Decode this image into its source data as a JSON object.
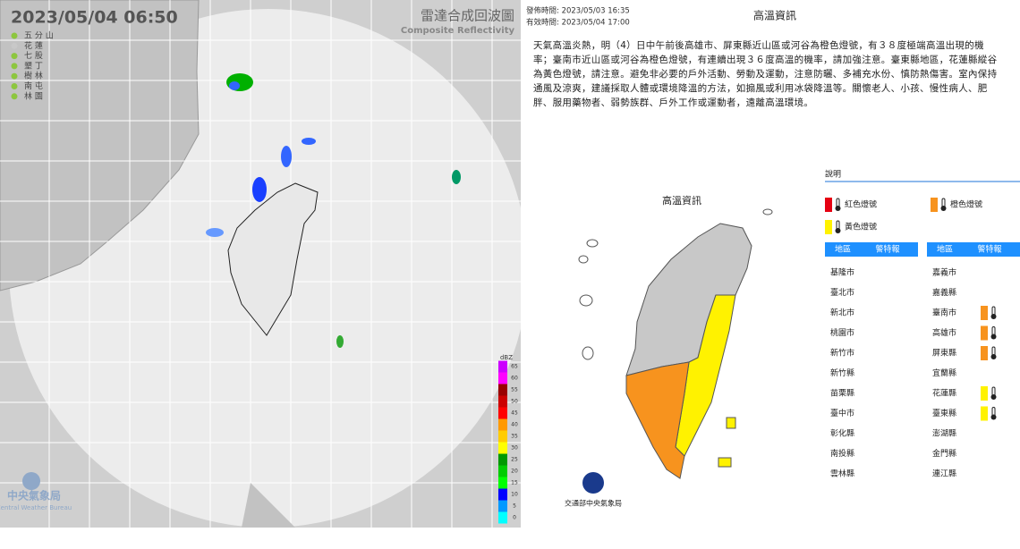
{
  "radar": {
    "timestamp": "2023/05/04  06:50",
    "title": "雷達合成回波圖",
    "subtitle": "Composite Reflectivity",
    "stations": [
      {
        "name": "五 分 山",
        "color": "#8dc63f"
      },
      {
        "name": "花 蓮",
        "color": "#c8c8c8"
      },
      {
        "name": "七 股",
        "color": "#8dc63f"
      },
      {
        "name": "墾 丁",
        "color": "#8dc63f"
      },
      {
        "name": "樹 林",
        "color": "#8dc63f"
      },
      {
        "name": "南 屯",
        "color": "#8dc63f"
      },
      {
        "name": "林 園",
        "color": "#8dc63f"
      }
    ],
    "colorbar": {
      "label": "dBZ",
      "ticks": [
        65,
        60,
        55,
        50,
        45,
        40,
        35,
        30,
        25,
        20,
        15,
        10,
        5,
        0
      ],
      "colors": [
        "#cc00ff",
        "#ff00ff",
        "#990000",
        "#cc0000",
        "#ff0000",
        "#ff9900",
        "#ffcc00",
        "#ffff00",
        "#009900",
        "#00cc00",
        "#00ff00",
        "#0000ff",
        "#0099ff",
        "#00ffff"
      ]
    },
    "logo": {
      "name": "中央氣象局",
      "name_en": "Central Weather Bureau"
    }
  },
  "heat": {
    "issued": "發佈時間: 2023/05/03 16:35",
    "valid": "有效時間: 2023/05/04 17:00",
    "title": "高溫資訊",
    "text": "天氣高溫炎熱，明（4）日中午前後高雄市、屏東縣近山區或河谷為橙色燈號，有３８度極端高溫出現的機率；臺南市近山區或河谷為橙色燈號，有連續出現３６度高溫的機率，請加強注意。臺東縣地區，花蓮縣縱谷為黃色燈號，請注意。避免非必要的戶外活動、勞動及運動，注意防曬、多補充水份、慎防熱傷害。室內保持通風及涼爽，建議採取人體或環境降溫的方法，如搧風或利用冰袋降溫等。關懷老人、小孩、慢性病人、肥胖、服用藥物者、弱勢族群、戶外工作或運動者，遠離高溫環境。",
    "map_title": "高溫資訊",
    "legend": {
      "title": "說明",
      "items": [
        {
          "label": "紅色燈號",
          "color": "#e60012"
        },
        {
          "label": "橙色燈號",
          "color": "#f7931e"
        },
        {
          "label": "黃色燈號",
          "color": "#fff200"
        }
      ]
    },
    "table": {
      "headers": [
        "地區",
        "警特報"
      ],
      "columns": [
        [
          {
            "region": "基隆市"
          },
          {
            "region": "臺北市"
          },
          {
            "region": "新北市"
          },
          {
            "region": "桃園市"
          },
          {
            "region": "新竹市"
          },
          {
            "region": "新竹縣"
          },
          {
            "region": "苗栗縣"
          },
          {
            "region": "臺中市"
          },
          {
            "region": "彰化縣"
          },
          {
            "region": "南投縣"
          },
          {
            "region": "雲林縣"
          }
        ],
        [
          {
            "region": "嘉義市"
          },
          {
            "region": "嘉義縣"
          },
          {
            "region": "臺南市",
            "color": "#f7931e"
          },
          {
            "region": "高雄市",
            "color": "#f7931e"
          },
          {
            "region": "屏東縣",
            "color": "#f7931e"
          },
          {
            "region": "宜蘭縣"
          },
          {
            "region": "花蓮縣",
            "color": "#fff200"
          },
          {
            "region": "臺東縣",
            "color": "#fff200"
          },
          {
            "region": "澎湖縣"
          },
          {
            "region": "金門縣"
          },
          {
            "region": "連江縣"
          }
        ]
      ]
    },
    "logo": "交通部中央氣象局"
  }
}
